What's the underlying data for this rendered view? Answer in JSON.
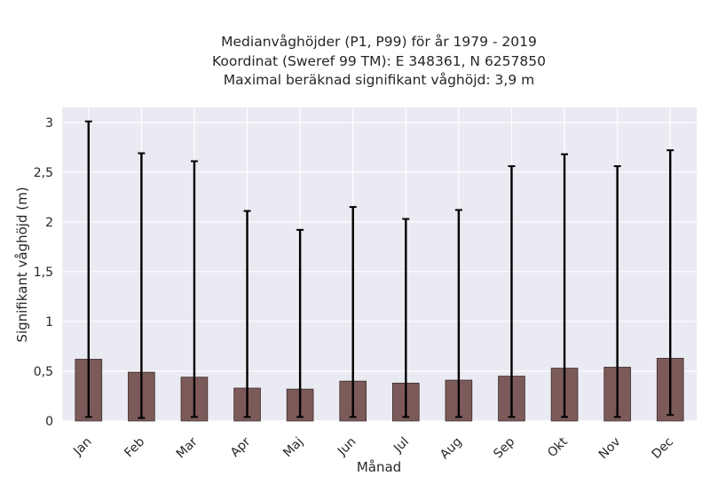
{
  "chart_data": {
    "type": "bar",
    "title_lines": [
      "Medianvåghöjder (P1, P99) för år 1979 - 2019",
      "Koordinat (Sweref 99 TM): E 348361, N 6257850",
      "Maximal beräknad signifikant våghöjd: 3,9 m"
    ],
    "xlabel": "Månad",
    "ylabel": "Signifikant våghöjd (m)",
    "categories": [
      "Jan",
      "Feb",
      "Mar",
      "Apr",
      "Maj",
      "Jun",
      "Jul",
      "Aug",
      "Sep",
      "Okt",
      "Nov",
      "Dec"
    ],
    "series": [
      {
        "values": [
          0.62,
          0.49,
          0.44,
          0.33,
          0.32,
          0.4,
          0.38,
          0.41,
          0.45,
          0.53,
          0.54,
          0.63
        ],
        "p1": [
          0.04,
          0.03,
          0.04,
          0.04,
          0.04,
          0.04,
          0.04,
          0.04,
          0.04,
          0.04,
          0.04,
          0.06
        ],
        "p99": [
          3.01,
          2.69,
          2.61,
          2.11,
          1.92,
          2.15,
          2.03,
          2.12,
          2.56,
          2.68,
          2.56,
          2.72
        ]
      }
    ],
    "ylim": [
      0,
      3.15
    ],
    "yticks": [
      0,
      0.5,
      1,
      1.5,
      2,
      2.5,
      3
    ],
    "ytick_labels": [
      "0",
      "0,5",
      "1",
      "1,5",
      "2",
      "2,5",
      "3"
    ],
    "grid": true,
    "colors": {
      "bar": "#7d5a5a",
      "bar_edge": "#3a2a2a",
      "error": "#000000",
      "plot_bg": "#eaeaf2",
      "grid": "#ffffff"
    }
  }
}
